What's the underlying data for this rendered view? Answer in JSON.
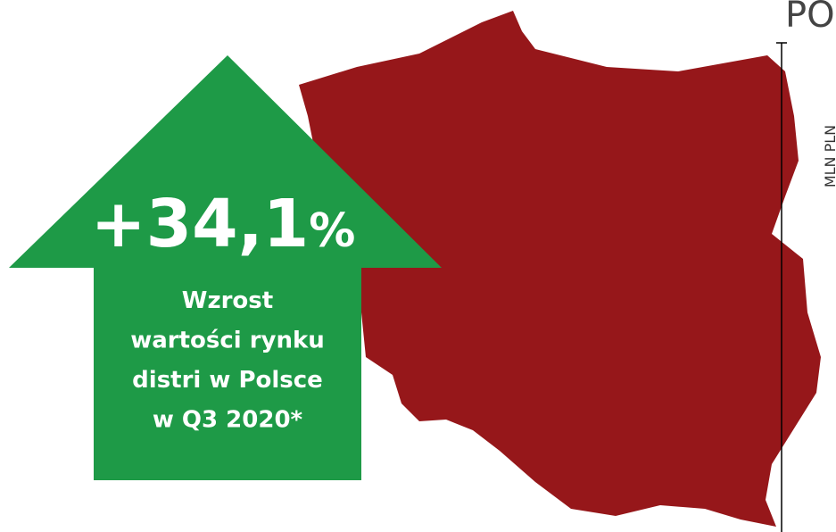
{
  "header": {
    "title": "PO"
  },
  "axis_label": "MLN PLN",
  "badge": {
    "value": "+34,1",
    "unit": "%",
    "lines": [
      "Wzrost",
      "wartości rynku",
      "distri w Polsce",
      "w Q3 2020*"
    ]
  }
}
